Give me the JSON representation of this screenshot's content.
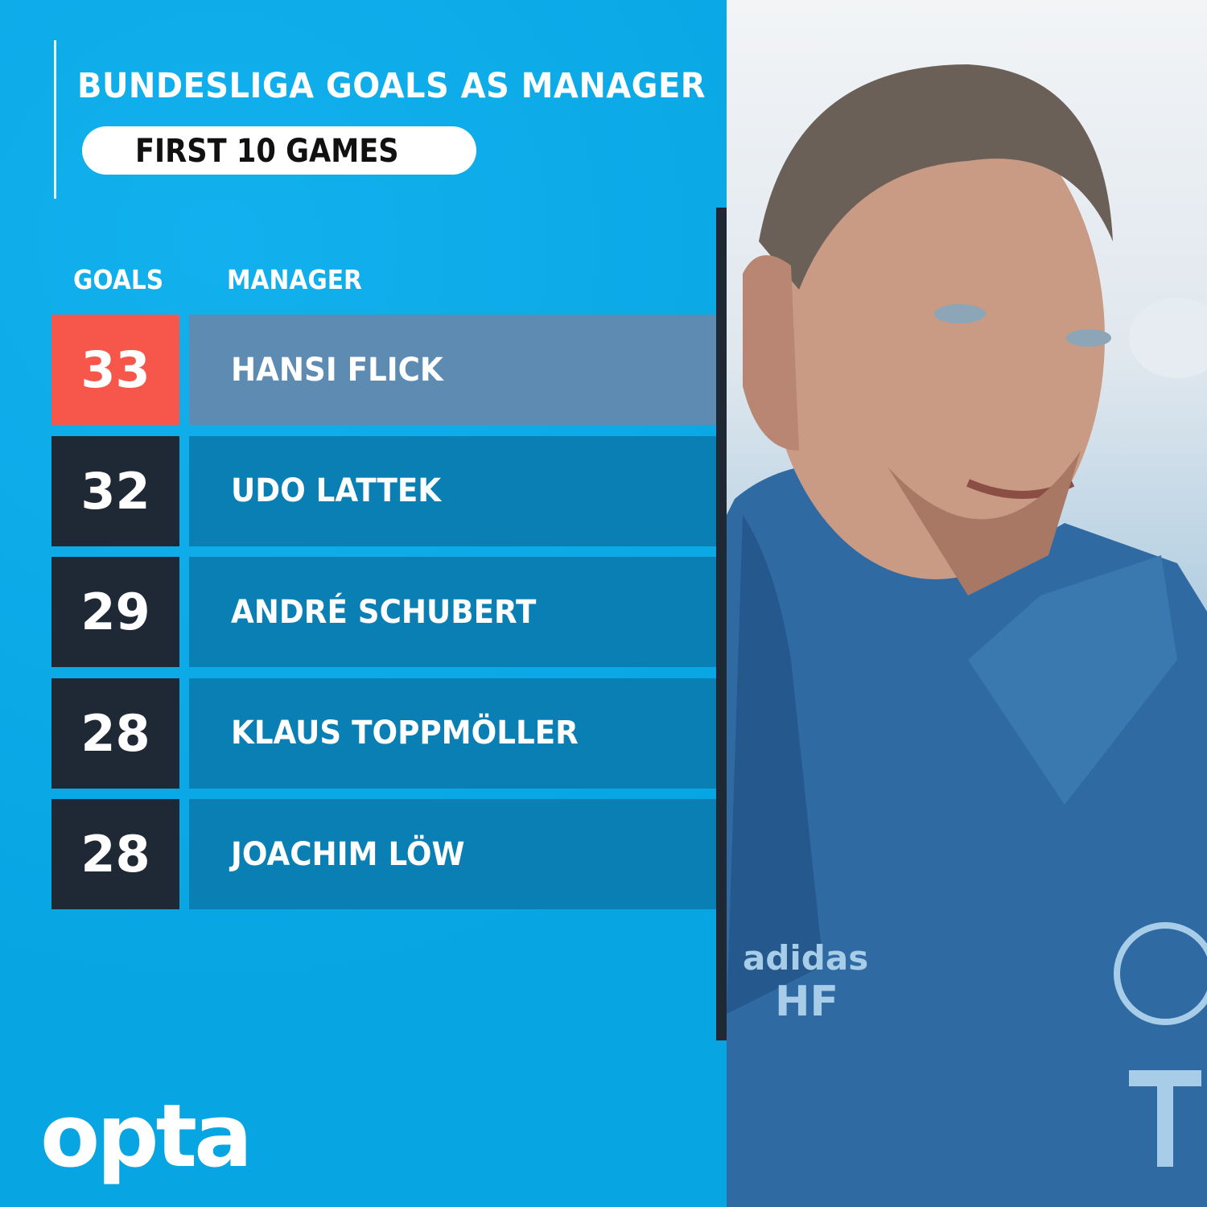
{
  "header": {
    "title": "BUNDESLIGA GOALS AS MANAGER",
    "subtitle": "FIRST 10 GAMES"
  },
  "chart_data": {
    "type": "table",
    "columns": [
      "GOALS",
      "MANAGER"
    ],
    "rows": [
      {
        "goals": "33",
        "manager": "HANSI FLICK",
        "highlight": true
      },
      {
        "goals": "32",
        "manager": "UDO LATTEK",
        "highlight": false
      },
      {
        "goals": "29",
        "manager": "ANDRÉ SCHUBERT",
        "highlight": false
      },
      {
        "goals": "28",
        "manager": "KLAUS TOPPMÖLLER",
        "highlight": false
      },
      {
        "goals": "28",
        "manager": "JOACHIM LÖW",
        "highlight": false
      }
    ]
  },
  "photo": {
    "jacket_text": "HF",
    "brand": "adidas"
  },
  "logo": "opta",
  "colors": {
    "background": "#0cacea",
    "highlight_goal": "#f6574a",
    "highlight_name": "#5d8bb2",
    "dark": "#1e2935",
    "name_bg": "#0a7fb3"
  }
}
